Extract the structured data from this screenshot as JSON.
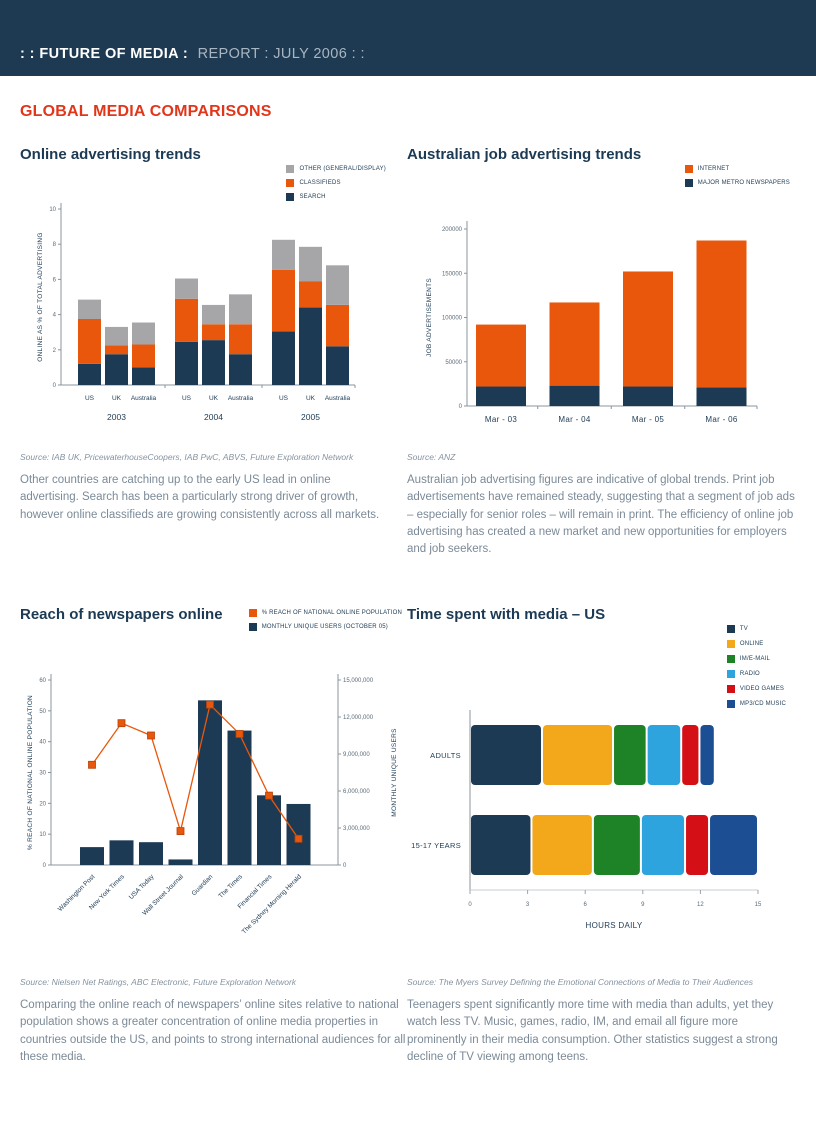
{
  "header": {
    "title_bold": ": : FUTURE OF MEDIA :",
    "title_rest": "REPORT : JULY 2006 : :"
  },
  "page_heading": "GLOBAL MEDIA COMPARISONS",
  "colors": {
    "header_band": "#1d3a52",
    "heading_red": "#e2361b",
    "navy": "#1c3a54",
    "orange": "#e8570b",
    "gray": "#a6a6a9",
    "amber": "#f3a71b",
    "green": "#1e8226",
    "light_blue": "#2ea4df",
    "red": "#d40f16",
    "mp3_blue": "#1c4e94",
    "text_slate": "#7b8a98"
  },
  "sections": {
    "online": {
      "title": "Online advertising trends",
      "source": "Source: IAB UK, PricewaterhouseCoopers, IAB PwC, ABVS, Future Exploration Network",
      "paragraph": "Other countries are catching up to the early US lead in online advertising. Search has been a particularly strong driver of growth, however online classifieds are growing consistently across all markets."
    },
    "jobs": {
      "title": "Australian job advertising trends",
      "source": "Source: ANZ",
      "paragraph": "Australian job advertising figures are indicative of global trends. Print job advertisements have remained steady, suggesting that a segment of job ads – especially for senior roles – will remain in print. The efficiency of online job advertising has created a new market and new opportunities for employers and job seekers."
    },
    "newspapers": {
      "title": "Reach of newspapers online",
      "source": "Source: Nielsen Net Ratings, ABC Electronic, Future Exploration Network",
      "paragraph": "Comparing the online reach of newspapers’ online sites relative to national population shows a greater concentration of online media properties in countries outside the US, and points to strong international audiences for all these media."
    },
    "time": {
      "title": "Time spent with media – US",
      "source": "Source: The Myers Survey Defining the Emotional Connections of Media to Their Audiences",
      "paragraph": "Teenagers spent significantly more time with media than adults, yet they watch less TV. Music, games, radio, IM, and email all figure more prominently in their media consumption. Other statistics suggest a strong decline of TV viewing among teens."
    }
  },
  "chart_data": [
    {
      "id": "online-advertising",
      "type": "bar",
      "stacked": true,
      "title": "Online advertising trends",
      "ylabel": "ONLINE AS % OF TOTAL ADVERTISING",
      "ylim": [
        0,
        10
      ],
      "yticks": [
        0,
        2,
        4,
        6,
        8,
        10
      ],
      "group_labels": [
        "2003",
        "2004",
        "2005"
      ],
      "categories": [
        "US",
        "UK",
        "Australia",
        "US",
        "UK",
        "Australia",
        "US",
        "UK",
        "Australia"
      ],
      "series": [
        {
          "name": "SEARCH",
          "color": "#1c3a54",
          "values": [
            1.2,
            1.75,
            1.0,
            2.45,
            2.55,
            1.75,
            3.05,
            4.4,
            2.2
          ]
        },
        {
          "name": "CLASSIFIEDS",
          "color": "#e8570b",
          "values": [
            2.55,
            0.5,
            1.3,
            2.45,
            0.9,
            1.7,
            3.5,
            1.5,
            2.35
          ]
        },
        {
          "name": "OTHER (GENERAL/DISPLAY)",
          "color": "#a6a6a9",
          "values": [
            1.1,
            1.05,
            1.25,
            1.15,
            1.1,
            1.7,
            1.7,
            1.95,
            2.25
          ]
        }
      ],
      "legend": [
        {
          "label": "OTHER (GENERAL/DISPLAY)",
          "color": "#a6a6a9"
        },
        {
          "label": "CLASSIFIEDS",
          "color": "#e8570b"
        },
        {
          "label": "SEARCH",
          "color": "#1c3a54"
        }
      ]
    },
    {
      "id": "australian-job",
      "type": "bar",
      "stacked": true,
      "title": "Australian job advertising trends",
      "ylabel": "JOB ADVERTISEMENTS",
      "ylim": [
        0,
        200000
      ],
      "yticks": [
        0,
        50000,
        100000,
        150000,
        200000
      ],
      "categories": [
        "Mar - 03",
        "Mar - 04",
        "Mar - 05",
        "Mar - 06"
      ],
      "series": [
        {
          "name": "MAJOR METRO NEWSPAPERS",
          "color": "#1c3a54",
          "values": [
            22000,
            23000,
            22000,
            21000
          ]
        },
        {
          "name": "INTERNET",
          "color": "#e8570b",
          "values": [
            70000,
            94000,
            130000,
            166000
          ]
        }
      ],
      "legend": [
        {
          "label": "INTERNET",
          "color": "#e8570b"
        },
        {
          "label": "MAJOR METRO NEWSPAPERS",
          "color": "#1c3a54"
        }
      ]
    },
    {
      "id": "newspapers-online",
      "type": "bar-line",
      "title": "Reach of newspapers online",
      "categories": [
        "Washington Post",
        "New York Times",
        "USA Today",
        "Wall Street Journal",
        "Guardian",
        "The Times",
        "Financial Times",
        "The Sydney Morning Herald"
      ],
      "bars": {
        "name": "MONTHLY UNIQUE USERS (OCTOBER 05)",
        "color": "#1c3a54",
        "axis": "right",
        "values": [
          1450000,
          2000000,
          1850000,
          450000,
          13350000,
          10900000,
          5650000,
          4950000
        ]
      },
      "line": {
        "name": "% REACH OF NATIONAL ONLINE POPULATION",
        "color": "#e8570b",
        "axis": "left",
        "values": [
          32.5,
          46,
          42,
          11,
          52,
          42.5,
          22.5,
          8.5
        ]
      },
      "left_axis": {
        "label": "% REACH OF NATIONAL ONLINE POPULATION",
        "lim": [
          0,
          60
        ],
        "ticks": [
          0,
          10,
          20,
          30,
          40,
          50,
          60
        ]
      },
      "right_axis": {
        "label": "MONTHLY UNIQUE USERS",
        "lim": [
          0,
          15000000
        ],
        "ticks": [
          0,
          3000000,
          6000000,
          9000000,
          12000000,
          15000000
        ],
        "tick_labels": [
          "0",
          "3,000,000",
          "6,000,000",
          "9,000,000",
          "12,000,000",
          "15,000,000"
        ]
      },
      "legend": [
        {
          "label": "% REACH OF NATIONAL ONLINE POPULATION",
          "color": "#e8570b"
        },
        {
          "label": "MONTHLY UNIQUE USERS (OCTOBER 05)",
          "color": "#1c3a54"
        }
      ]
    },
    {
      "id": "time-spent",
      "type": "horizontal-stacked-bar",
      "title": "Time spent with media – US",
      "categories": [
        "ADULTS",
        "15-17 YEARS"
      ],
      "xlabel": "HOURS DAILY",
      "xlim": [
        0,
        15
      ],
      "xticks": [
        0,
        3,
        6,
        9,
        12,
        15
      ],
      "series": [
        {
          "name": "TV",
          "color": "#1c3a54",
          "values": [
            3.75,
            3.2
          ]
        },
        {
          "name": "ONLINE",
          "color": "#f3a71b",
          "values": [
            3.7,
            3.2
          ]
        },
        {
          "name": "IM/E-MAIL",
          "color": "#1e8226",
          "values": [
            1.75,
            2.5
          ]
        },
        {
          "name": "RADIO",
          "color": "#2ea4df",
          "values": [
            1.8,
            2.3
          ]
        },
        {
          "name": "VIDEO GAMES",
          "color": "#d40f16",
          "values": [
            0.95,
            1.25
          ]
        },
        {
          "name": "MP3/CD MUSIC",
          "color": "#1c4e94",
          "values": [
            0.8,
            2.55
          ]
        }
      ],
      "legend": [
        {
          "label": "TV",
          "color": "#1c3a54"
        },
        {
          "label": "ONLINE",
          "color": "#f3a71b"
        },
        {
          "label": "IM/E-MAIL",
          "color": "#1e8226"
        },
        {
          "label": "RADIO",
          "color": "#2ea4df"
        },
        {
          "label": "VIDEO GAMES",
          "color": "#d40f16"
        },
        {
          "label": "MP3/CD MUSIC",
          "color": "#1c4e94"
        }
      ]
    }
  ]
}
